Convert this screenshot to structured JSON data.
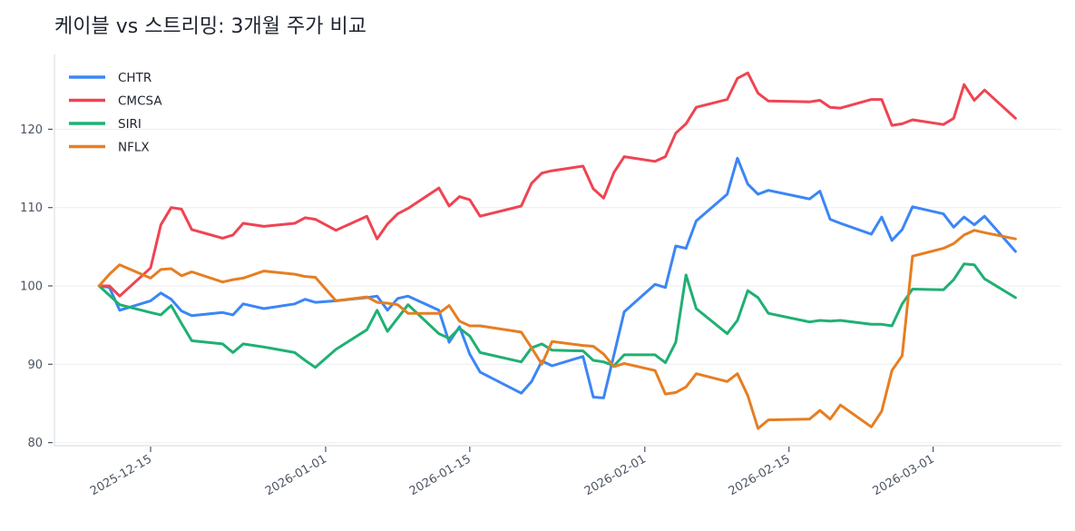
{
  "chart_data": {
    "type": "line",
    "title": "케이블 vs 스트리밍: 3개월 주가 비교",
    "xlabel": "",
    "ylabel": "",
    "ylim": [
      79.5,
      129.5
    ],
    "yticks": [
      80,
      90,
      100,
      110,
      120
    ],
    "xticks": [
      "2025-12-15",
      "2026-01-01",
      "2026-01-15",
      "2026-02-01",
      "2026-02-15",
      "2026-03-01"
    ],
    "grid": "horizontal",
    "legend_position": "top-left",
    "x": [
      "2025-12-10",
      "2025-12-11",
      "2025-12-12",
      "2025-12-15",
      "2025-12-16",
      "2025-12-17",
      "2025-12-18",
      "2025-12-19",
      "2025-12-22",
      "2025-12-23",
      "2025-12-24",
      "2025-12-26",
      "2025-12-29",
      "2025-12-30",
      "2025-12-31",
      "2026-01-02",
      "2026-01-05",
      "2026-01-06",
      "2026-01-07",
      "2026-01-08",
      "2026-01-09",
      "2026-01-12",
      "2026-01-13",
      "2026-01-14",
      "2026-01-15",
      "2026-01-16",
      "2026-01-20",
      "2026-01-21",
      "2026-01-22",
      "2026-01-23",
      "2026-01-26",
      "2026-01-27",
      "2026-01-28",
      "2026-01-29",
      "2026-01-30",
      "2026-02-02",
      "2026-02-03",
      "2026-02-04",
      "2026-02-05",
      "2026-02-06",
      "2026-02-09",
      "2026-02-10",
      "2026-02-11",
      "2026-02-12",
      "2026-02-13",
      "2026-02-17",
      "2026-02-18",
      "2026-02-19",
      "2026-02-20",
      "2026-02-23",
      "2026-02-24",
      "2026-02-25",
      "2026-02-26",
      "2026-02-27",
      "2026-03-02",
      "2026-03-03",
      "2026-03-04",
      "2026-03-05",
      "2026-03-06",
      "2026-03-09"
    ],
    "series": [
      {
        "name": "CHTR",
        "color": "#3b86f6",
        "values": [
          100,
          99.8,
          96.9,
          98.1,
          99.1,
          98.3,
          96.8,
          96.2,
          96.6,
          96.3,
          97.7,
          97.1,
          97.7,
          98.3,
          97.9,
          98.1,
          98.5,
          98.7,
          96.9,
          98.4,
          98.7,
          96.9,
          92.8,
          94.8,
          91.3,
          89.0,
          86.3,
          87.8,
          90.4,
          89.8,
          91.0,
          85.8,
          85.7,
          91.2,
          96.7,
          100.2,
          99.8,
          105.1,
          104.8,
          108.3,
          111.7,
          116.3,
          113.0,
          111.7,
          112.2,
          111.1,
          112.1,
          108.5,
          108.0,
          106.6,
          108.8,
          105.8,
          107.2,
          110.1,
          109.2,
          107.5,
          108.8,
          107.8,
          108.9,
          104.4
        ]
      },
      {
        "name": "CMCSA",
        "color": "#ef4453",
        "values": [
          100,
          100,
          98.7,
          102.3,
          107.8,
          110,
          109.8,
          107.2,
          106.1,
          106.5,
          108,
          107.6,
          108.0,
          108.7,
          108.5,
          107.1,
          108.9,
          106.0,
          107.9,
          109.2,
          109.9,
          112.5,
          110.2,
          111.4,
          111.0,
          108.9,
          110.2,
          113.1,
          114.4,
          114.7,
          115.3,
          112.4,
          111.2,
          114.5,
          116.5,
          115.9,
          116.5,
          119.5,
          120.7,
          122.8,
          123.8,
          126.5,
          127.2,
          124.6,
          123.6,
          123.5,
          123.7,
          122.8,
          122.7,
          123.8,
          123.8,
          120.5,
          120.7,
          121.2,
          120.6,
          121.4,
          125.7,
          123.7,
          125.0,
          121.4
        ]
      },
      {
        "name": "SIRI",
        "color": "#1fb073",
        "values": [
          100,
          98.8,
          97.6,
          96.6,
          96.3,
          97.5,
          95.2,
          93.0,
          92.6,
          91.5,
          92.6,
          92.2,
          91.5,
          90.5,
          89.6,
          91.9,
          94.4,
          96.9,
          94.2,
          95.9,
          97.6,
          93.9,
          93.3,
          94.6,
          93.6,
          91.5,
          90.3,
          92.1,
          92.6,
          91.8,
          91.7,
          90.5,
          90.3,
          89.8,
          91.2,
          91.2,
          90.2,
          92.8,
          101.4,
          97.1,
          93.9,
          95.6,
          99.4,
          98.5,
          96.5,
          95.4,
          95.6,
          95.5,
          95.6,
          95.1,
          95.1,
          94.9,
          97.7,
          99.6,
          99.5,
          100.8,
          102.8,
          102.7,
          100.9,
          98.5
        ]
      },
      {
        "name": "NFLX",
        "color": "#e67e22",
        "values": [
          100,
          101.5,
          102.7,
          101.0,
          102.1,
          102.2,
          101.3,
          101.8,
          100.5,
          100.8,
          101.0,
          101.9,
          101.5,
          101.2,
          101.1,
          98.1,
          98.6,
          97.9,
          97.8,
          97.6,
          96.5,
          96.5,
          97.5,
          95.5,
          94.9,
          94.9,
          94.1,
          92.1,
          90.0,
          92.9,
          92.4,
          92.3,
          91.3,
          89.7,
          90.1,
          89.2,
          86.2,
          86.4,
          87.1,
          88.8,
          87.8,
          88.8,
          86.0,
          81.8,
          82.9,
          83.0,
          84.1,
          83.0,
          84.8,
          82.0,
          84.0,
          89.2,
          91.1,
          103.8,
          104.8,
          105.4,
          106.5,
          107.1,
          106.8,
          106.0
        ]
      }
    ]
  }
}
